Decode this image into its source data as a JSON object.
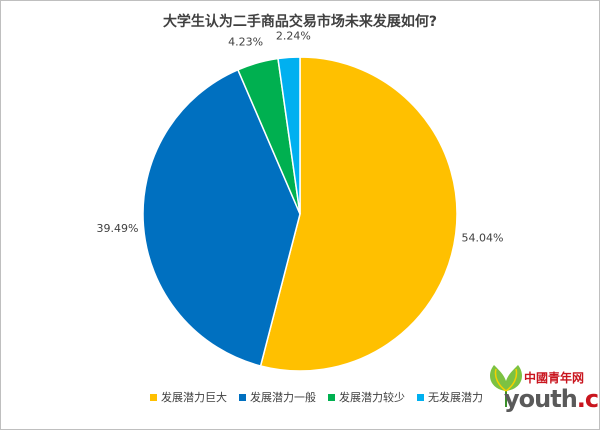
{
  "chart_data": {
    "type": "pie",
    "title": "大学生认为二手商品交易市场未来发展如何?",
    "slices": [
      {
        "label": "发展潜力巨大",
        "value": 54.04,
        "display": "54.04%",
        "color": "#ffc000"
      },
      {
        "label": "发展潜力一般",
        "value": 39.49,
        "display": "39.49%",
        "color": "#0070c0"
      },
      {
        "label": "发展潜力较少",
        "value": 4.23,
        "display": "4.23%",
        "color": "#00b050"
      },
      {
        "label": "无发展潜力",
        "value": 2.24,
        "display": "2.24%",
        "color": "#00b0f0"
      }
    ],
    "legend_position": "bottom",
    "start_angle": "12 o'clock, clockwise"
  },
  "watermark": {
    "brand_cn": "中國青年网",
    "brand_en_prefix": "youth",
    "brand_en_suffix": ".cn"
  }
}
